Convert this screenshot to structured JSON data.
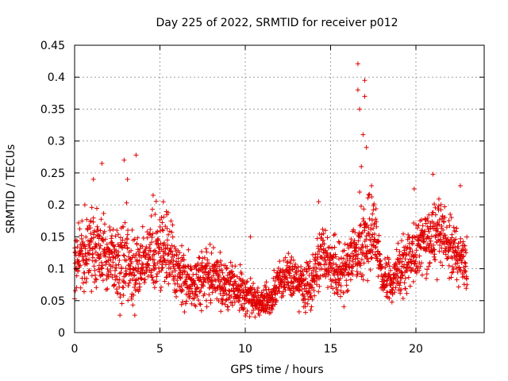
{
  "chart_data": {
    "type": "scatter",
    "title": "Day 225 of 2022, SRMTID for receiver p012",
    "xlabel": "GPS time / hours",
    "ylabel": "SRMTID / TECUs",
    "xlim": [
      0,
      24
    ],
    "ylim": [
      0,
      0.45
    ],
    "x_ticks": [
      0,
      5,
      10,
      15,
      20
    ],
    "y_ticks": [
      0,
      0.05,
      0.1,
      0.15,
      0.2,
      0.25,
      0.3,
      0.35,
      0.4,
      0.45
    ],
    "x_tick_labels": [
      "0",
      "5",
      "10",
      "15",
      "20"
    ],
    "y_tick_labels": [
      "0",
      "0.05",
      "0.1",
      "0.15",
      "0.2",
      "0.25",
      "0.3",
      "0.35",
      "0.4",
      "0.45"
    ],
    "grid": true,
    "marker": "+",
    "color": "#e00000",
    "series": [
      {
        "name": "SRMTID",
        "profile_hours": [
          0,
          0.5,
          1,
          1.5,
          2,
          2.5,
          3,
          3.5,
          4,
          4.5,
          5,
          5.5,
          6,
          6.5,
          7,
          7.5,
          8,
          8.5,
          9,
          9.5,
          10,
          10.5,
          11,
          11.5,
          12,
          12.5,
          13,
          13.5,
          14,
          14.5,
          15,
          15.5,
          16,
          16.5,
          17,
          17.5,
          18,
          18.5,
          19,
          19.5,
          20,
          20.5,
          21,
          21.5,
          22,
          22.5,
          23
        ],
        "profile_median": [
          0.11,
          0.12,
          0.14,
          0.13,
          0.12,
          0.11,
          0.12,
          0.09,
          0.11,
          0.12,
          0.12,
          0.13,
          0.1,
          0.08,
          0.07,
          0.08,
          0.09,
          0.08,
          0.07,
          0.07,
          0.06,
          0.05,
          0.05,
          0.05,
          0.08,
          0.09,
          0.08,
          0.07,
          0.09,
          0.12,
          0.1,
          0.09,
          0.1,
          0.13,
          0.15,
          0.16,
          0.09,
          0.08,
          0.1,
          0.11,
          0.12,
          0.14,
          0.15,
          0.16,
          0.14,
          0.12,
          0.11
        ],
        "profile_spread": [
          0.05,
          0.05,
          0.06,
          0.05,
          0.05,
          0.05,
          0.06,
          0.05,
          0.05,
          0.05,
          0.05,
          0.05,
          0.04,
          0.04,
          0.03,
          0.04,
          0.04,
          0.04,
          0.03,
          0.03,
          0.03,
          0.02,
          0.02,
          0.02,
          0.03,
          0.03,
          0.03,
          0.03,
          0.04,
          0.05,
          0.04,
          0.04,
          0.04,
          0.05,
          0.05,
          0.05,
          0.03,
          0.03,
          0.04,
          0.04,
          0.04,
          0.05,
          0.05,
          0.05,
          0.05,
          0.04,
          0.04
        ],
        "outliers": [
          [
            0.6,
            0.2
          ],
          [
            1.6,
            0.265
          ],
          [
            1.1,
            0.24
          ],
          [
            2.9,
            0.27
          ],
          [
            3.6,
            0.278
          ],
          [
            3.1,
            0.24
          ],
          [
            4.6,
            0.215
          ],
          [
            5.2,
            0.205
          ],
          [
            10.3,
            0.15
          ],
          [
            14.3,
            0.205
          ],
          [
            16.6,
            0.421
          ],
          [
            16.6,
            0.38
          ],
          [
            16.7,
            0.35
          ],
          [
            16.9,
            0.31
          ],
          [
            17.0,
            0.395
          ],
          [
            17.0,
            0.37
          ],
          [
            17.1,
            0.29
          ],
          [
            16.8,
            0.26
          ],
          [
            16.7,
            0.22
          ],
          [
            17.4,
            0.23
          ],
          [
            19.9,
            0.225
          ],
          [
            21.0,
            0.248
          ],
          [
            22.6,
            0.23
          ]
        ]
      }
    ]
  }
}
